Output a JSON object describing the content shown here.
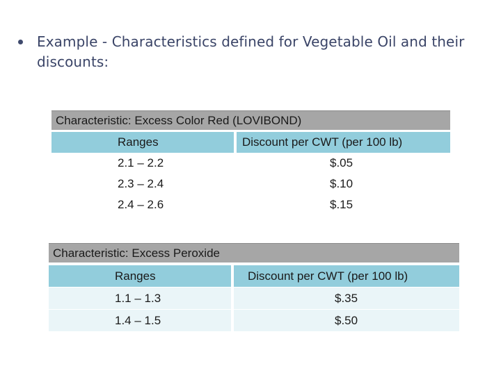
{
  "bullet": {
    "text": "Example - Characteristics defined for Vegetable Oil and their discounts:"
  },
  "tables": [
    {
      "title": "Characteristic: Excess Color Red (LOVIBOND)",
      "headers": [
        "Ranges",
        "Discount per CWT (per 100 lb)"
      ],
      "rows": [
        [
          "2.1 – 2.2",
          "$.05"
        ],
        [
          "2.3 – 2.4",
          "$.10"
        ],
        [
          "2.4 – 2.6",
          "$.15"
        ]
      ]
    },
    {
      "title": "Characteristic: Excess Peroxide",
      "headers": [
        "Ranges",
        "Discount per CWT (per 100 lb)"
      ],
      "rows": [
        [
          "1.1 – 1.3",
          "$.35"
        ],
        [
          "1.4 – 1.5",
          "$.50"
        ]
      ]
    }
  ],
  "colors": {
    "title_bar": "#a6a6a6",
    "header_row": "#92cddc",
    "body_row_alt": "#eaf5f8",
    "bullet_text": "#3a4467"
  }
}
